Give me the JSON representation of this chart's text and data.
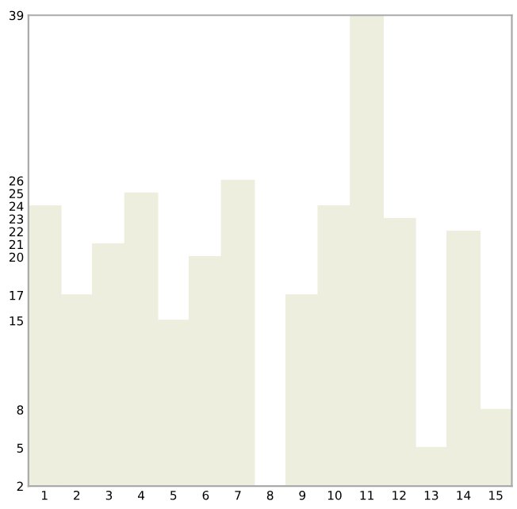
{
  "chart_data": {
    "type": "bar",
    "categories": [
      "1",
      "2",
      "3",
      "4",
      "5",
      "6",
      "7",
      "8",
      "9",
      "10",
      "11",
      "12",
      "13",
      "14",
      "15"
    ],
    "values": [
      24,
      17,
      21,
      25,
      15,
      20,
      26,
      2,
      17,
      24,
      39,
      23,
      5,
      22,
      8
    ],
    "color": "#eeeedf",
    "ylim": [
      2,
      39
    ],
    "yticks": [
      2,
      5,
      8,
      15,
      17,
      20,
      21,
      22,
      23,
      24,
      25,
      26,
      39
    ],
    "grid": false
  }
}
